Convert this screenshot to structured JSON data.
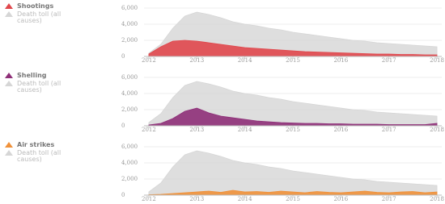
{
  "chart_data": [
    {
      "type": "area",
      "x": [
        2012,
        2012.25,
        2012.5,
        2012.75,
        2013,
        2013.25,
        2013.5,
        2013.75,
        2014,
        2014.25,
        2014.5,
        2014.75,
        2015,
        2015.25,
        2015.5,
        2015.75,
        2016,
        2016.25,
        2016.5,
        2016.75,
        2017,
        2017.25,
        2017.5,
        2017.75,
        2018
      ],
      "series": [
        {
          "name": "Shootings",
          "color": "#e0474c",
          "values": [
            300,
            1200,
            1900,
            2000,
            1900,
            1700,
            1500,
            1300,
            1100,
            1000,
            900,
            800,
            700,
            600,
            550,
            500,
            450,
            400,
            350,
            300,
            300,
            250,
            250,
            200,
            200
          ]
        },
        {
          "name": "Death toll (all causes)",
          "color": "#d6d6d6",
          "values": [
            400,
            1500,
            3500,
            5000,
            5500,
            5200,
            4800,
            4300,
            4000,
            3800,
            3500,
            3300,
            3000,
            2800,
            2600,
            2400,
            2200,
            2000,
            1900,
            1700,
            1600,
            1500,
            1400,
            1300,
            1200
          ]
        }
      ],
      "xlim": [
        2011.9,
        2018.1
      ],
      "xticks": [
        2012,
        2013,
        2014,
        2015,
        2016,
        2017,
        2018
      ],
      "ylim": [
        0,
        6000
      ],
      "yticks": [
        0,
        {
          "value": 2000,
          "label": "2,000"
        },
        {
          "value": 4000,
          "label": "4,000"
        },
        {
          "value": 6000,
          "label": "6,000"
        }
      ]
    },
    {
      "type": "area",
      "x": [
        2012,
        2012.25,
        2012.5,
        2012.75,
        2013,
        2013.25,
        2013.5,
        2013.75,
        2014,
        2014.25,
        2014.5,
        2014.75,
        2015,
        2015.25,
        2015.5,
        2015.75,
        2016,
        2016.25,
        2016.5,
        2016.75,
        2017,
        2017.25,
        2017.5,
        2017.75,
        2018
      ],
      "series": [
        {
          "name": "Shelling",
          "color": "#8e2f78",
          "values": [
            100,
            300,
            900,
            1800,
            2200,
            1600,
            1200,
            1000,
            800,
            600,
            500,
            400,
            350,
            300,
            300,
            250,
            250,
            200,
            200,
            200,
            150,
            150,
            150,
            150,
            300
          ]
        },
        {
          "name": "Death toll (all causes)",
          "color": "#d6d6d6",
          "values": [
            400,
            1500,
            3500,
            5000,
            5500,
            5200,
            4800,
            4300,
            4000,
            3800,
            3500,
            3300,
            3000,
            2800,
            2600,
            2400,
            2200,
            2000,
            1900,
            1700,
            1600,
            1500,
            1400,
            1300,
            1200
          ]
        }
      ],
      "xlim": [
        2011.9,
        2018.1
      ],
      "xticks": [
        2012,
        2013,
        2014,
        2015,
        2016,
        2017,
        2018
      ],
      "ylim": [
        0,
        6000
      ],
      "yticks": [
        0,
        {
          "value": 2000,
          "label": "2,000"
        },
        {
          "value": 4000,
          "label": "4,000"
        },
        {
          "value": 6000,
          "label": "6,000"
        }
      ]
    },
    {
      "type": "area",
      "x": [
        2012,
        2012.25,
        2012.5,
        2012.75,
        2013,
        2013.25,
        2013.5,
        2013.75,
        2014,
        2014.25,
        2014.5,
        2014.75,
        2015,
        2015.25,
        2015.5,
        2015.75,
        2016,
        2016.25,
        2016.5,
        2016.75,
        2017,
        2017.25,
        2017.5,
        2017.75,
        2018
      ],
      "series": [
        {
          "name": "Air strikes",
          "color": "#f0913a",
          "values": [
            50,
            100,
            200,
            300,
            400,
            500,
            350,
            600,
            400,
            450,
            350,
            500,
            400,
            300,
            450,
            350,
            300,
            400,
            500,
            350,
            300,
            400,
            450,
            300,
            400
          ]
        },
        {
          "name": "Death toll (all causes)",
          "color": "#d6d6d6",
          "values": [
            400,
            1500,
            3500,
            5000,
            5500,
            5200,
            4800,
            4300,
            4000,
            3800,
            3500,
            3300,
            3000,
            2800,
            2600,
            2400,
            2200,
            2000,
            1900,
            1700,
            1600,
            1500,
            1400,
            1300,
            1200
          ]
        }
      ],
      "xlim": [
        2011.9,
        2018.1
      ],
      "xticks": [
        2012,
        2013,
        2014,
        2015,
        2016,
        2017,
        2018
      ],
      "ylim": [
        0,
        6000
      ],
      "yticks": [
        0,
        {
          "value": 2000,
          "label": "2,000"
        },
        {
          "value": 4000,
          "label": "4,000"
        },
        {
          "value": 6000,
          "label": "6,000"
        }
      ]
    }
  ]
}
